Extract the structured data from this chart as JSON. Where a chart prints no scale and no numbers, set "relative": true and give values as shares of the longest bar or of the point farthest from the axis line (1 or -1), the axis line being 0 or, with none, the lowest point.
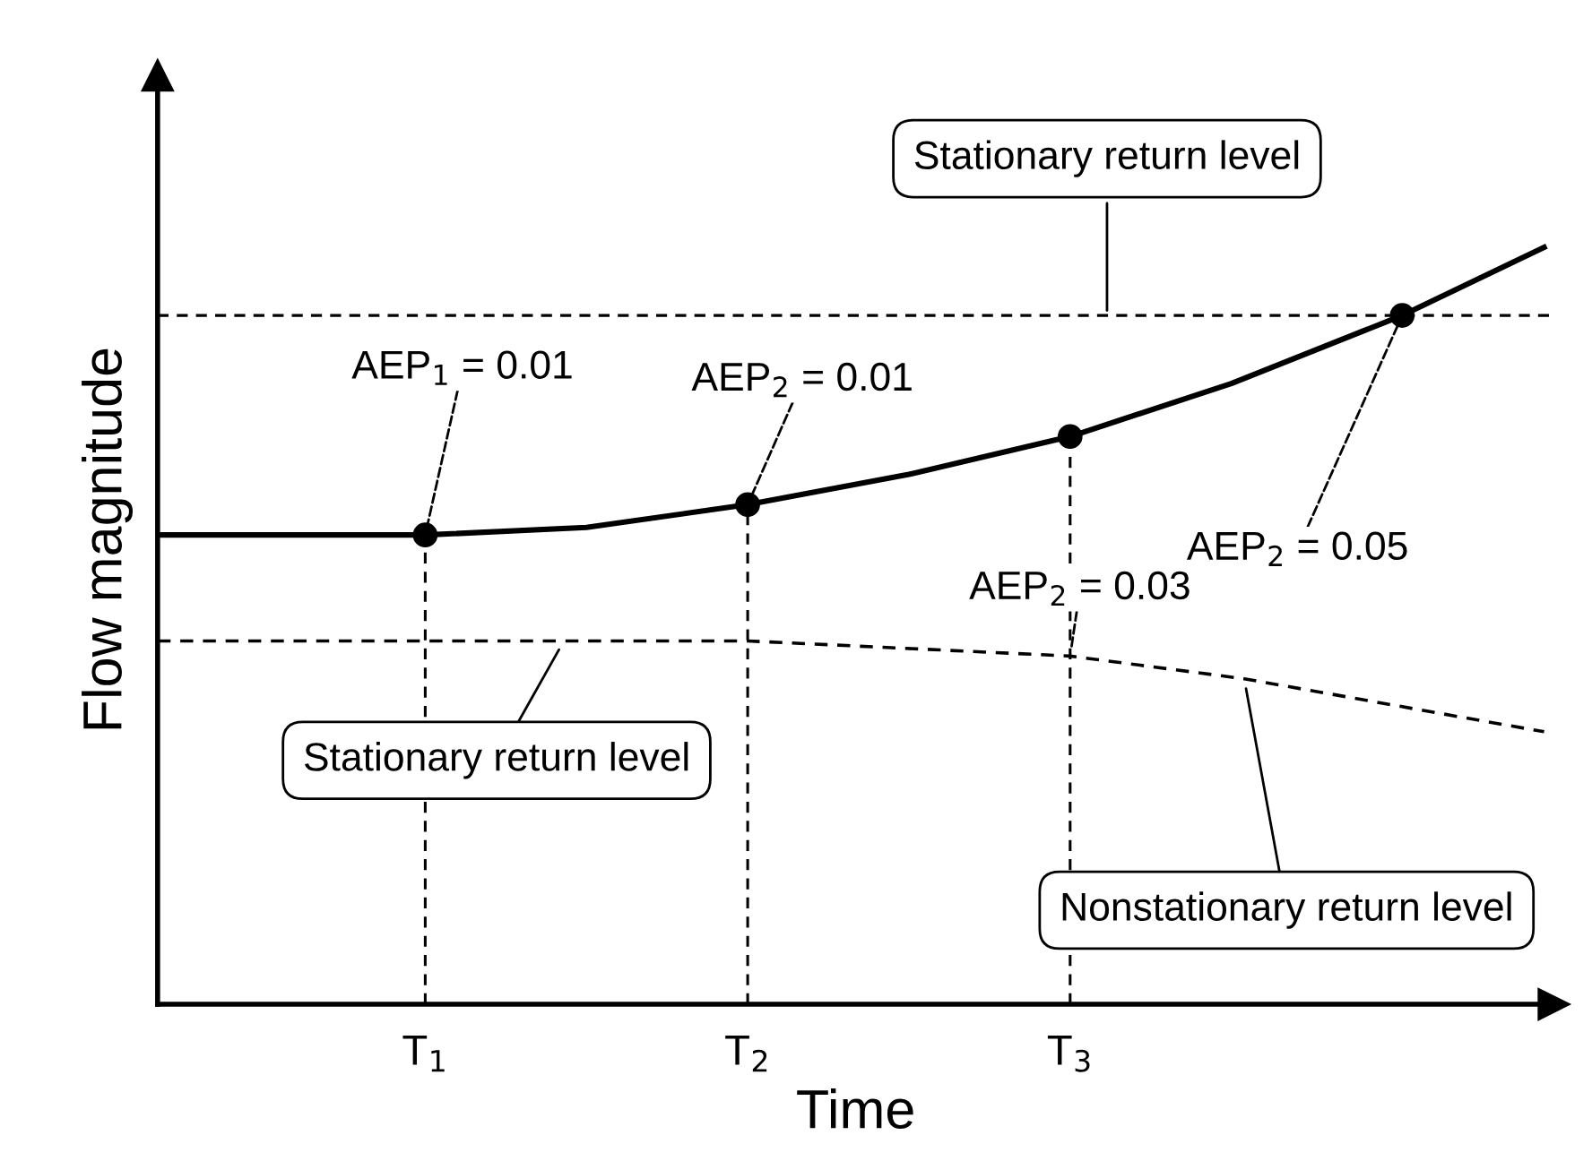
{
  "chart_data": {
    "type": "line",
    "relative": true,
    "xlabel": "Time",
    "ylabel": "Flow magnitude",
    "xlim": [
      0.17,
      4.5
    ],
    "xticks": [
      {
        "value": 1,
        "label": "T$_{1}$"
      },
      {
        "value": 2,
        "label": "T$_{2}$"
      },
      {
        "value": 3,
        "label": "T$_{3}$"
      }
    ],
    "grid": false,
    "legend": false,
    "series": [
      {
        "color": "#000000",
        "line_style": "solid",
        "marker": "none",
        "x": [
          0.17,
          1,
          1.5,
          2,
          2.5,
          3,
          3.5,
          4.03,
          4.47
        ],
        "values": [
          0.62,
          0.62,
          0.63,
          0.66,
          0.7,
          0.75,
          0.82,
          0.91,
          1.0
        ]
      },
      {
        "color": "#000000",
        "line_style": "dashed",
        "marker": "none",
        "x": [
          0.17,
          1,
          2,
          3,
          3.54,
          4.47
        ],
        "values": [
          0.48,
          0.48,
          0.48,
          0.46,
          0.43,
          0.36
        ]
      },
      {
        "type": "scatter",
        "color": "#000000",
        "marker": "circle",
        "x": [
          1,
          2,
          3,
          4.03
        ],
        "values": [
          0.62,
          0.66,
          0.75,
          0.91
        ]
      }
    ],
    "ref_lines": [
      {
        "axis": "y",
        "value": 0.91,
        "label": "Stationary return level",
        "color": "#000000",
        "line_style": "dashed"
      },
      {
        "axis": "x",
        "value": 1,
        "color": "#000000",
        "line_style": "dashed"
      },
      {
        "axis": "x",
        "value": 2,
        "color": "#000000",
        "line_style": "dashed"
      },
      {
        "axis": "x",
        "value": 3,
        "color": "#000000",
        "line_style": "dashed"
      }
    ],
    "annotations": [
      {
        "text": "AEP$_{1}$ = 0.01",
        "x": 1,
        "y": 0.62
      },
      {
        "text": "AEP$_{2}$ = 0.01",
        "x": 2,
        "y": 0.66
      },
      {
        "text": "AEP$_{2}$ = 0.03",
        "x": 3,
        "y": 0.46
      },
      {
        "text": "AEP$_{2}$ = 0.05",
        "x": 4.03,
        "y": 0.91
      },
      {
        "text": "Stationary return level",
        "x": 1.43,
        "y": 0.48
      },
      {
        "text": "Nonstationary return level",
        "x": 3.54,
        "y": 0.43
      }
    ]
  }
}
